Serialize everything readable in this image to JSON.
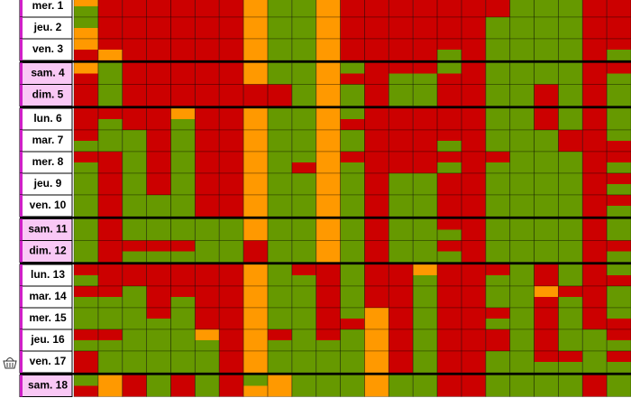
{
  "colors": {
    "R": "#cc0000",
    "G": "#669900",
    "O": "#ff9900"
  },
  "rows": [
    {
      "label": "mer. 1",
      "bg": "#ffffff",
      "cells": [
        "ORRRRRROGGORRRRRRRGGGRR",
        "GRRRRRROGGORRRRRRRGGGRR"
      ]
    },
    {
      "label": "jeu. 2",
      "bg": "#ffffff",
      "cells": [
        "GRRRRRROGGORRRRRRGGGGRR",
        "ORRRRRROGGORRRRRRGGGGRR"
      ]
    },
    {
      "label": "ven. 3",
      "bg": "#ffffff",
      "cells": [
        "ORRRRRROGGORRRRRRGGGGRR",
        "RORRRRROGGORRRRGRGGGGRG"
      ]
    },
    {
      "label": "sam. 4",
      "bg": "#f9c8f5",
      "cells": [
        "OGRRRRROGGOGRRRGRGGGGRR",
        "RGRRRRROGGORRGGRRGGGGRG"
      ]
    },
    {
      "label": "dim. 5",
      "bg": "#f9c8f5",
      "cells": [
        "RGRRRRRRRGOGRGGRRGGRGRG",
        "RGRRRRRRRGOGRGGRRGGRGRG"
      ]
    },
    {
      "label": "lun. 6",
      "bg": "#ffffff",
      "cells": [
        "RRRRORROGGOGRRRRRGGRGRG",
        "RGRRGRROGGORRRRRRGGRGRG"
      ]
    },
    {
      "label": "mar. 7",
      "bg": "#ffffff",
      "cells": [
        "RGGRGRROGGOGRRRRRGGGRRG",
        "GGGRGRROGGOGRRRGRGGGRRR"
      ]
    },
    {
      "label": "mer. 8",
      "bg": "#ffffff",
      "cells": [
        "RRGRGRROGGORRRRRRRGGGRR",
        "GRGRGRROGROGRRRGRGGGGRG"
      ]
    },
    {
      "label": "jeu. 9",
      "bg": "#ffffff",
      "cells": [
        "GRGRGRROGGOGRGGRRGGGGRR",
        "GRGRGRROGGOGRGGRRGGGGRG"
      ]
    },
    {
      "label": "ven. 10",
      "bg": "#ffffff",
      "cells": [
        "GRGGGRROGGOGRGGRRGGGGRR",
        "GRGGGRROGGOGRGGRRGGGGRG"
      ]
    },
    {
      "label": "sam. 11",
      "bg": "#f9c8f5",
      "cells": [
        "GRGGGGGOGGOGRGGRRGGGGRG",
        "GRGGGGGOGGOGRGGGRGGGGRG"
      ]
    },
    {
      "label": "dim. 12",
      "bg": "#f9c8f5",
      "cells": [
        "GRRRRGGRGGOGRGGRRGGGGRR",
        "GRGGGGGRGGOGRGGGRGGGGRG"
      ]
    },
    {
      "label": "lun. 13",
      "bg": "#ffffff",
      "cells": [
        "RRRRRRROGRRGRRORRRGRGRG",
        "GRRRRRROGGRGRRGRRGGRGRR"
      ]
    },
    {
      "label": "mar. 14",
      "bg": "#ffffff",
      "cells": [
        "RRGRRRROGGRGRRGRRGGORRG",
        "GGGRGRROGGRGRRGRRGGRGRG"
      ]
    },
    {
      "label": "mer. 15",
      "bg": "#ffffff",
      "cells": [
        "GGGRGRROGGRGORGRRRGRGRG",
        "GGGGGRROGGRRORGRRGGRGRR"
      ]
    },
    {
      "label": "jeu. 16",
      "bg": "#ffffff",
      "cells": [
        "RRGGGORORGRGORGRRRGRGGR",
        "GGGGGGROGGGGORGRRRGRGGG"
      ]
    },
    {
      "label": "ven. 17",
      "bg": "#ffffff",
      "cells": [
        "RGGGGGROGGGGORGRRGGRRGR",
        "RGGGGGROGGGGORGRRGGGGGG"
      ]
    },
    {
      "label": "sam. 18",
      "bg": "#f9c8f5",
      "cells": [
        "GORGRGRGOGGGOGGRRGGGGRG",
        "RORGRGROOGGGOGGRRGGGGRG"
      ]
    }
  ]
}
